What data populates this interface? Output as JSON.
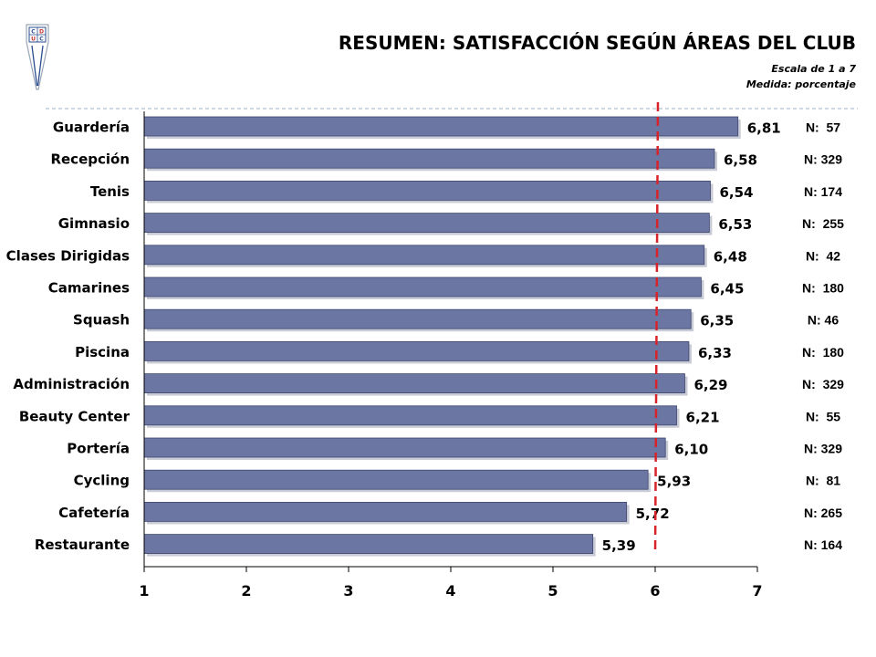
{
  "header": {
    "title": "RESUMEN: SATISFACCIÓN SEGÚN ÁREAS DEL CLUB",
    "scale_note": "Escala de 1 a 7",
    "measure_note": "Medida: porcentaje"
  },
  "logo": {
    "icon": "club-crest-icon",
    "letters": [
      "C",
      "D",
      "U",
      "C"
    ],
    "colors": {
      "blue": "#2a4c8f",
      "red": "#c4302b"
    }
  },
  "colors": {
    "bar_fill": "#6b76a2",
    "bar_stroke": "#3e4770",
    "reference_line": "#d8232a",
    "header_divider": "#9db0c4"
  },
  "chart_data": {
    "type": "bar",
    "orientation": "horizontal",
    "categories": [
      "Guardería",
      "Recepción",
      "Tenis",
      "Gimnasio",
      "Clases Dirigidas",
      "Camarines",
      "Squash",
      "Piscina",
      "Administración",
      "Beauty  Center",
      "Portería",
      "Cycling",
      "Cafetería",
      "Restaurante"
    ],
    "values": [
      6.81,
      6.58,
      6.54,
      6.53,
      6.48,
      6.45,
      6.35,
      6.33,
      6.29,
      6.21,
      6.1,
      5.93,
      5.72,
      5.39
    ],
    "value_labels": [
      "6,81",
      "6,58",
      "6,54",
      "6,53",
      "6,48",
      "6,45",
      "6,35",
      "6,33",
      "6,29",
      "6,21",
      "6,10",
      "5,93",
      "5,72",
      "5,39"
    ],
    "n_labels": [
      "N:  57",
      "N: 329",
      "N: 174",
      "N:  255",
      "N:  42",
      "N:  180",
      "N: 46",
      "N:  180",
      "N:  329",
      "N:  55",
      "N: 329",
      "N:  81",
      "N: 265",
      "N: 164"
    ],
    "x_ticks": [
      "1",
      "2",
      "3",
      "4",
      "5",
      "6",
      "7"
    ],
    "xlim": [
      1,
      7
    ],
    "reference_line": 6,
    "grid": false
  }
}
